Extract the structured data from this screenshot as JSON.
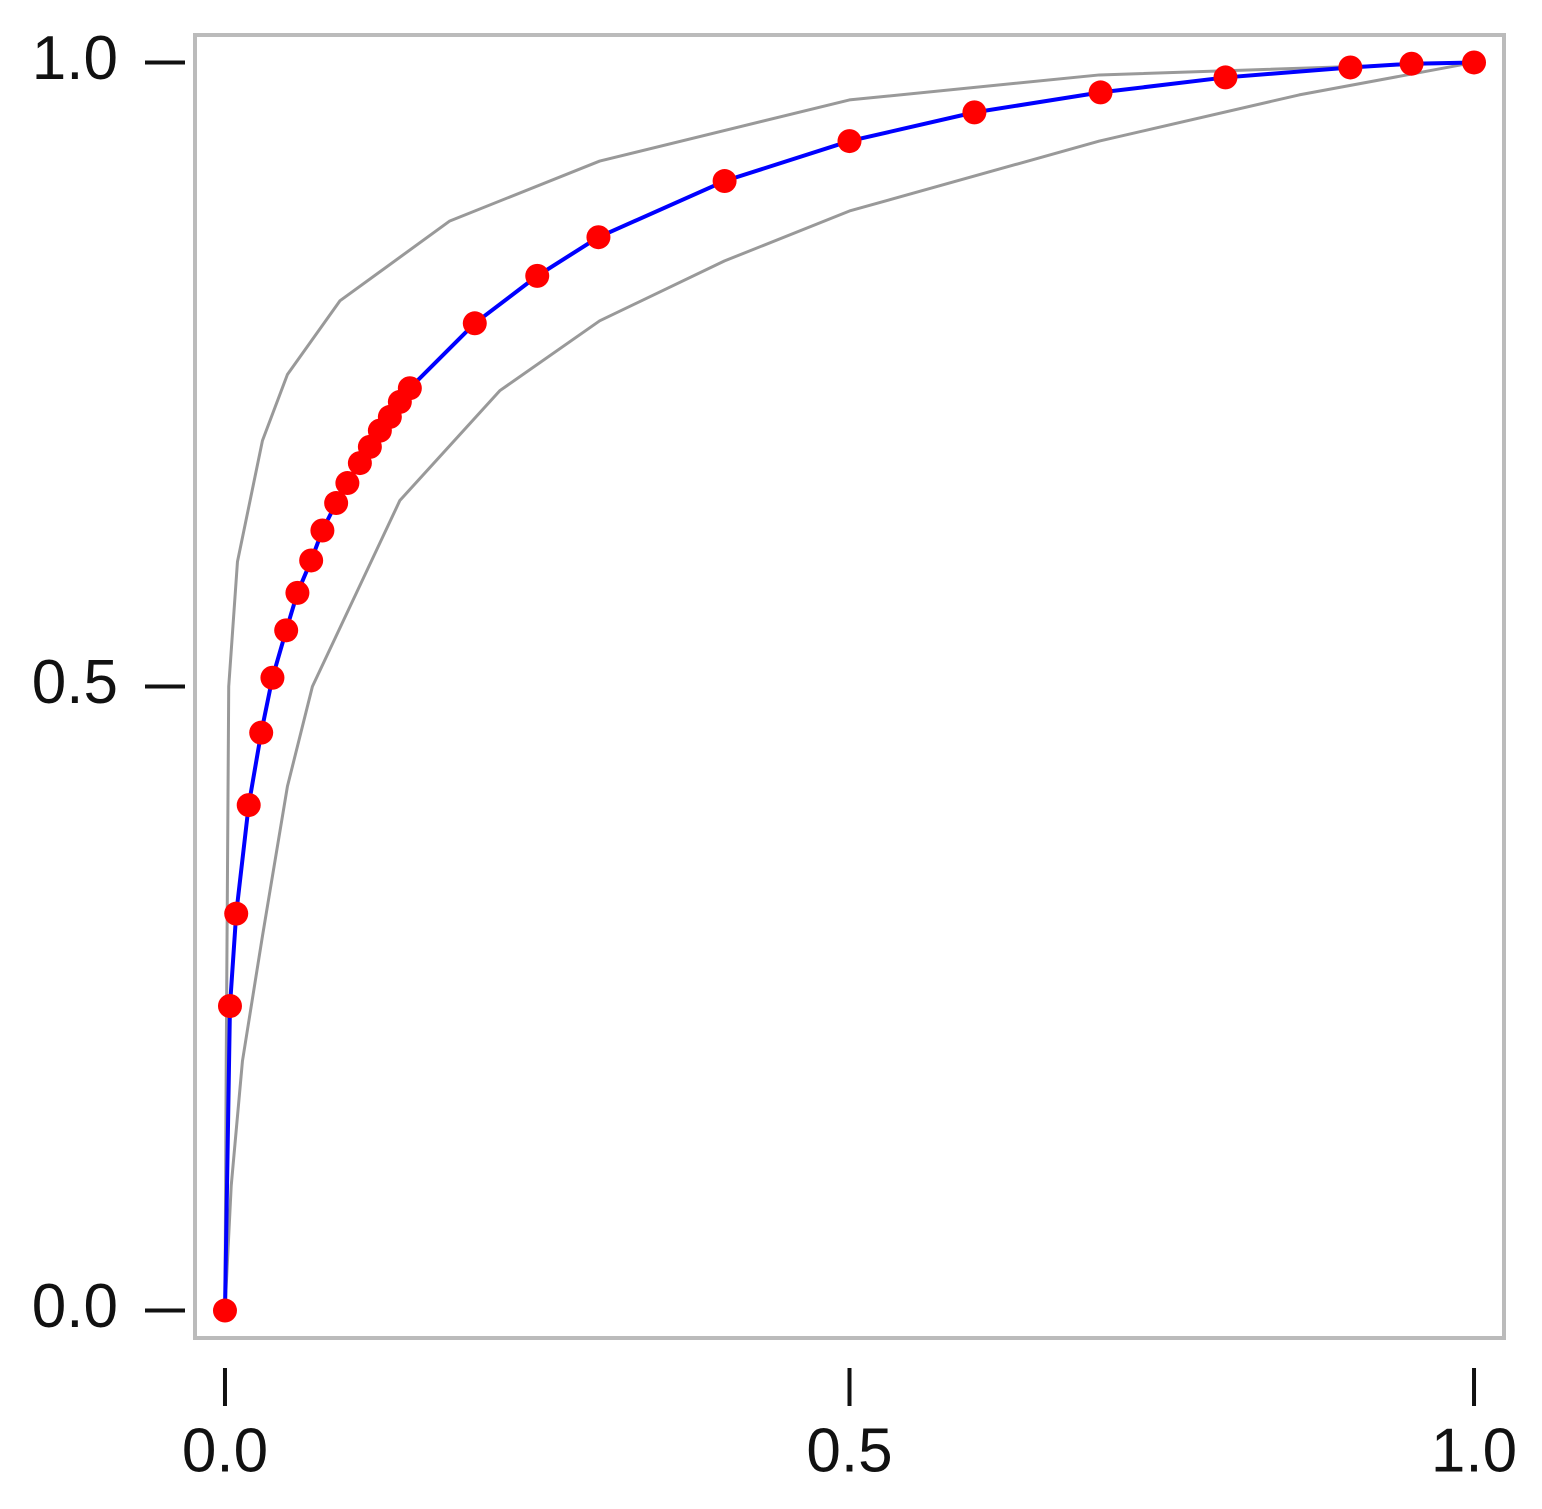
{
  "chart_data": {
    "type": "line",
    "xlim": [
      -0.024,
      1.024
    ],
    "ylim": [
      -0.022,
      1.022
    ],
    "xticks": [
      {
        "value": 0,
        "label": "0.0"
      },
      {
        "value": 0.5,
        "label": "0.5"
      },
      {
        "value": 1,
        "label": "1.0"
      }
    ],
    "yticks": [
      {
        "value": 0,
        "label": "0.0"
      },
      {
        "value": 0.5,
        "label": "0.5"
      },
      {
        "value": 1,
        "label": "1.0"
      }
    ],
    "series": [
      {
        "color": "#999999",
        "x": [
          0,
          0.001,
          0.003,
          0.01,
          0.03,
          0.05,
          0.092,
          0.18,
          0.3,
          0.5,
          0.7,
          1
        ],
        "values": [
          0,
          0.2,
          0.5,
          0.6,
          0.697,
          0.75,
          0.809,
          0.873,
          0.921,
          0.97,
          0.99,
          1
        ]
      },
      {
        "color": "#999999",
        "x": [
          0,
          0.005,
          0.014,
          0.03,
          0.05,
          0.07,
          0.14,
          0.22,
          0.3,
          0.4,
          0.5,
          0.7,
          0.86,
          1
        ],
        "values": [
          0,
          0.1,
          0.2,
          0.3,
          0.42,
          0.5,
          0.649,
          0.737,
          0.793,
          0.841,
          0.881,
          0.937,
          0.974,
          1
        ]
      },
      {
        "color": "#0000ff",
        "marker_color": "#ff0000",
        "x": [
          0,
          0.004,
          0.009,
          0.019,
          0.029,
          0.038,
          0.049,
          0.058,
          0.069,
          0.078,
          0.089,
          0.098,
          0.108,
          0.116,
          0.124,
          0.132,
          0.14,
          0.148,
          0.2,
          0.25,
          0.299,
          0.4,
          0.5,
          0.6,
          0.701,
          0.801,
          0.901,
          0.95,
          1
        ],
        "values": [
          0,
          0.244,
          0.318,
          0.405,
          0.463,
          0.507,
          0.545,
          0.575,
          0.601,
          0.625,
          0.647,
          0.663,
          0.679,
          0.692,
          0.705,
          0.716,
          0.728,
          0.739,
          0.791,
          0.829,
          0.86,
          0.905,
          0.937,
          0.96,
          0.976,
          0.988,
          0.996,
          0.999,
          1
        ]
      }
    ]
  }
}
